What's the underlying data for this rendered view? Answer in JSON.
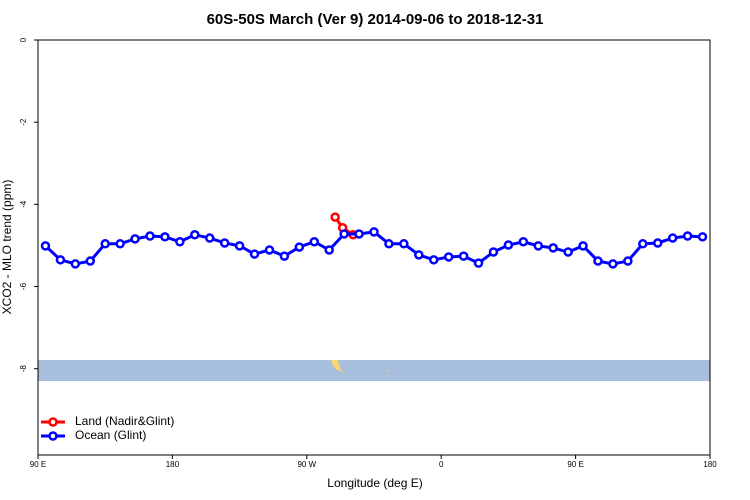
{
  "chart_data": {
    "type": "line",
    "title": "60S-50S March (Ver 9)   2014-09-06 to 2018-12-31",
    "x_label": "Longitude (deg E)",
    "y_label": "XCO2 - MLO trend (ppm)",
    "xlim": [
      90,
      540
    ],
    "ylim": [
      -10.1,
      0
    ],
    "xticks": [
      {
        "value": 90,
        "label": "90 E"
      },
      180,
      {
        "value": 270,
        "label": "90 W"
      },
      {
        "value": 360,
        "label": "0"
      },
      {
        "value": 450,
        "label": "90 E"
      },
      {
        "value": 540,
        "label": "180"
      }
    ],
    "yticks": [
      0,
      -2,
      -4,
      -6,
      -8
    ],
    "legend": "bottom-left",
    "series": [
      {
        "name": "Land (Nadir&Glint)",
        "color": "#ff0000",
        "x": [
          289,
          294,
          301
        ],
        "values": [
          -4.31,
          -4.57,
          -4.74
        ]
      },
      {
        "name": "Ocean (Glint)",
        "color": "#0000ff",
        "x": [
          95,
          105,
          115,
          125,
          135,
          145,
          155,
          165,
          175,
          185,
          195,
          205,
          215,
          225,
          235,
          245,
          255,
          265,
          275,
          285,
          295,
          305,
          315,
          325,
          335,
          345,
          355,
          365,
          375,
          385,
          395,
          405,
          415,
          425,
          435,
          445,
          455,
          465,
          475,
          485,
          495,
          505,
          515,
          525,
          535
        ],
        "values": [
          -5.01,
          -5.35,
          -5.45,
          -5.38,
          -4.96,
          -4.96,
          -4.84,
          -4.77,
          -4.79,
          -4.91,
          -4.74,
          -4.82,
          -4.94,
          -5.01,
          -5.21,
          -5.11,
          -5.26,
          -5.04,
          -4.91,
          -5.11,
          -4.72,
          -4.72,
          -4.67,
          -4.96,
          -4.96,
          -5.23,
          -5.35,
          -5.28,
          -5.26,
          -5.43,
          -5.16,
          -4.99,
          -4.91,
          -5.01,
          -5.06,
          -5.16,
          -5.01,
          -5.38,
          -5.45,
          -5.38,
          -4.96,
          -4.94,
          -4.82,
          -4.77,
          -4.79
        ]
      }
    ]
  }
}
